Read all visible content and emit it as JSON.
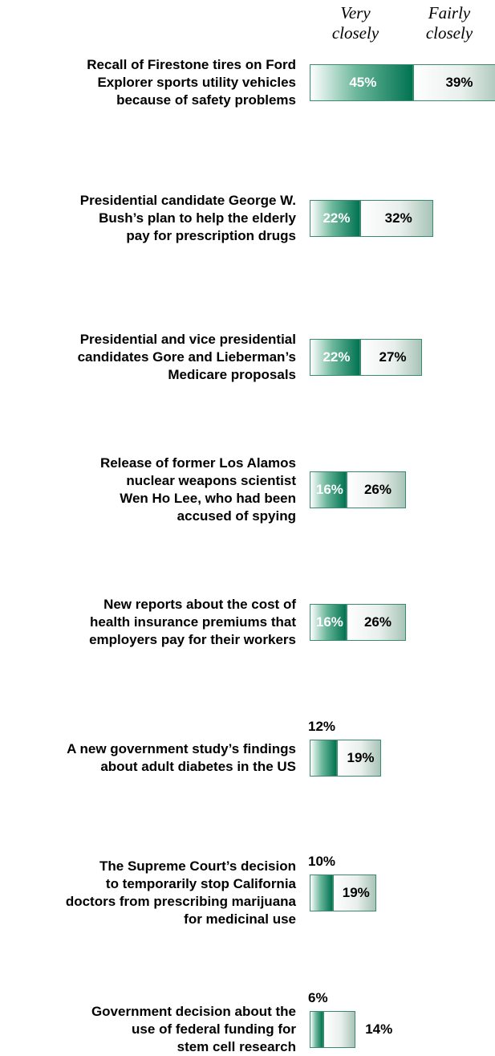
{
  "chart_data": {
    "type": "bar",
    "orientation": "horizontal",
    "stacked": true,
    "legend_placement": "top",
    "series": [
      {
        "name": "Very closely",
        "values": [
          45,
          22,
          22,
          16,
          16,
          12,
          10,
          6
        ]
      },
      {
        "name": "Fairly closely",
        "values": [
          39,
          32,
          27,
          26,
          26,
          19,
          19,
          14
        ]
      }
    ],
    "categories": [
      "Recall of Firestone tires on Ford Explorer sports utility vehicles because of safety problems",
      "Presidential candidate George W. Bush’s plan to help the elderly pay for prescription drugs",
      "Presidential and vice presidential candidates Gore and Lieberman’s Medicare proposals",
      "Release of former Los Alamos nuclear weapons scientist Wen Ho Lee, who had been accused of spying",
      "New reports about the cost of health insurance premiums that employers pay for their workers",
      "A new government study’s findings about adult diabetes in the US",
      "The Supreme Court’s decision to temporarily stop California doctors from prescribing marijuana for medicinal use",
      "Government decision about the use of federal funding for stem cell research"
    ],
    "category_lines": [
      [
        "Recall of Firestone tires on Ford",
        "Explorer sports utility vehicles",
        "because of safety problems"
      ],
      [
        "Presidential candidate George W.",
        "Bush’s plan to help the elderly",
        "pay for prescription drugs"
      ],
      [
        "Presidential and vice presidential",
        "candidates Gore and Lieberman’s",
        "Medicare proposals"
      ],
      [
        "Release of former Los Alamos",
        "nuclear weapons scientist",
        "Wen Ho Lee, who had been",
        "accused of spying"
      ],
      [
        "New reports about the cost of",
        "health insurance premiums that",
        "employers pay for their workers"
      ],
      [
        "A new government study’s findings",
        "about adult diabetes in the US"
      ],
      [
        "The Supreme Court’s decision",
        "to temporarily stop California",
        "doctors from prescribing marijuana",
        "for medicinal use"
      ],
      [
        "Government decision about the",
        "use of federal funding for",
        "stem cell research"
      ]
    ],
    "legend": {
      "very": [
        "Very",
        "closely"
      ],
      "fairly": [
        "Fairly",
        "closely"
      ]
    },
    "value_suffix": "%",
    "colors": {
      "very_dark": "#007350",
      "very_light": "#6cb79c",
      "fairly_light": "#e8efec",
      "border": "#3a8a6e"
    }
  }
}
